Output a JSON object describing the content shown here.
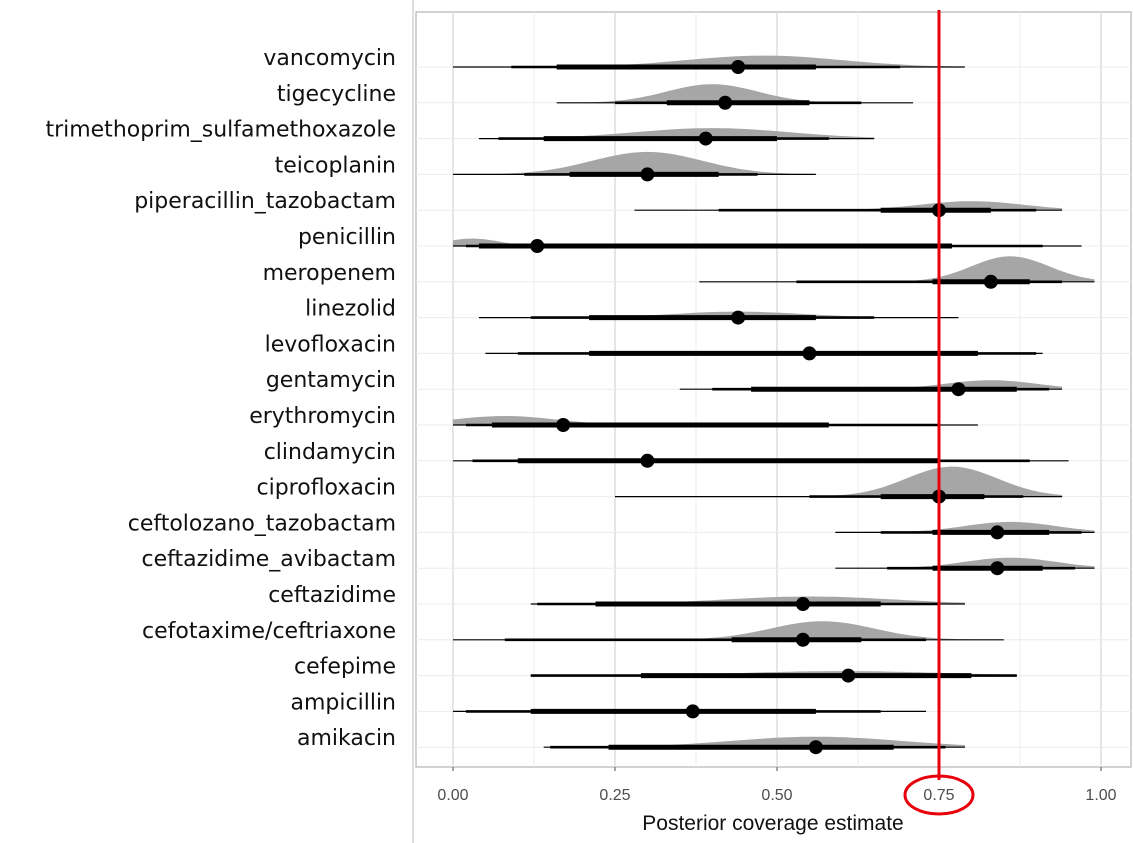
{
  "chart_data": {
    "type": "interval",
    "xlabel": "Posterior coverage estimate",
    "xlim": [
      -0.06,
      1.04
    ],
    "xticks": [
      0.0,
      0.25,
      0.5,
      0.75,
      1.0
    ],
    "xtick_labels": [
      "0.00",
      "0.25",
      "0.50",
      "0.75",
      "1.00"
    ],
    "grid": true,
    "reference_line": {
      "value": 0.75,
      "color": "#e8000b"
    },
    "highlight": {
      "tick": "0.75",
      "shape": "ellipse",
      "color": "#e8000b"
    },
    "colors": {
      "density": "#a6a6a6",
      "interval": "#000000"
    },
    "rows": [
      {
        "label": "vancomycin",
        "median": 0.44,
        "q50": [
          0.16,
          0.56
        ],
        "q80": [
          0.09,
          0.69
        ],
        "q95": [
          0.0,
          0.79
        ],
        "dmode": 0.48,
        "dspread": 0.12,
        "dheight": 0.38
      },
      {
        "label": "tigecycline",
        "median": 0.42,
        "q50": [
          0.33,
          0.55
        ],
        "q80": [
          0.25,
          0.63
        ],
        "q95": [
          0.16,
          0.71
        ],
        "dmode": 0.4,
        "dspread": 0.07,
        "dheight": 0.62
      },
      {
        "label": "trimethoprim_sulfamethoxazole",
        "median": 0.39,
        "q50": [
          0.14,
          0.5
        ],
        "q80": [
          0.07,
          0.58
        ],
        "q95": [
          0.04,
          0.65
        ],
        "dmode": 0.4,
        "dspread": 0.12,
        "dheight": 0.35
      },
      {
        "label": "teicoplanin",
        "median": 0.3,
        "q50": [
          0.18,
          0.41
        ],
        "q80": [
          0.11,
          0.47
        ],
        "q95": [
          0.0,
          0.56
        ],
        "dmode": 0.3,
        "dspread": 0.085,
        "dheight": 0.75
      },
      {
        "label": "piperacillin_tazobactam",
        "median": 0.75,
        "q50": [
          0.66,
          0.83
        ],
        "q80": [
          0.41,
          0.9
        ],
        "q95": [
          0.28,
          0.94
        ],
        "dmode": 0.8,
        "dspread": 0.08,
        "dheight": 0.3
      },
      {
        "label": "penicillin",
        "median": 0.13,
        "q50": [
          0.04,
          0.77
        ],
        "q80": [
          0.02,
          0.91
        ],
        "q95": [
          0.0,
          0.97
        ],
        "dmode": 0.03,
        "dspread": 0.04,
        "dheight": 0.25
      },
      {
        "label": "meropenem",
        "median": 0.83,
        "q50": [
          0.74,
          0.89
        ],
        "q80": [
          0.53,
          0.94
        ],
        "q95": [
          0.38,
          0.99
        ],
        "dmode": 0.86,
        "dspread": 0.06,
        "dheight": 0.85
      },
      {
        "label": "linezolid",
        "median": 0.44,
        "q50": [
          0.21,
          0.56
        ],
        "q80": [
          0.12,
          0.65
        ],
        "q95": [
          0.04,
          0.78
        ],
        "dmode": 0.44,
        "dspread": 0.1,
        "dheight": 0.2
      },
      {
        "label": "levofloxacin",
        "median": 0.55,
        "q50": [
          0.21,
          0.81
        ],
        "q80": [
          0.1,
          0.9
        ],
        "q95": [
          0.05,
          0.91
        ],
        "dmode": 0.55,
        "dspread": 0.2,
        "dheight": 0.0
      },
      {
        "label": "gentamycin",
        "median": 0.78,
        "q50": [
          0.46,
          0.87
        ],
        "q80": [
          0.4,
          0.92
        ],
        "q95": [
          0.35,
          0.94
        ],
        "dmode": 0.83,
        "dspread": 0.07,
        "dheight": 0.3
      },
      {
        "label": "erythromycin",
        "median": 0.17,
        "q50": [
          0.06,
          0.58
        ],
        "q80": [
          0.02,
          0.75
        ],
        "q95": [
          0.0,
          0.81
        ],
        "dmode": 0.08,
        "dspread": 0.08,
        "dheight": 0.3
      },
      {
        "label": "clindamycin",
        "median": 0.3,
        "q50": [
          0.1,
          0.75
        ],
        "q80": [
          0.03,
          0.89
        ],
        "q95": [
          0.0,
          0.95
        ],
        "dmode": 0.2,
        "dspread": 0.2,
        "dheight": 0.0
      },
      {
        "label": "ciprofloxacin",
        "median": 0.75,
        "q50": [
          0.66,
          0.82
        ],
        "q80": [
          0.55,
          0.88
        ],
        "q95": [
          0.25,
          0.94
        ],
        "dmode": 0.77,
        "dspread": 0.07,
        "dheight": 1.0
      },
      {
        "label": "ceftolozano_tazobactam",
        "median": 0.84,
        "q50": [
          0.74,
          0.92
        ],
        "q80": [
          0.66,
          0.97
        ],
        "q95": [
          0.59,
          0.99
        ],
        "dmode": 0.86,
        "dspread": 0.07,
        "dheight": 0.35
      },
      {
        "label": "ceftazidime_avibactam",
        "median": 0.84,
        "q50": [
          0.74,
          0.91
        ],
        "q80": [
          0.67,
          0.96
        ],
        "q95": [
          0.59,
          0.99
        ],
        "dmode": 0.86,
        "dspread": 0.07,
        "dheight": 0.35
      },
      {
        "label": "ceftazidime",
        "median": 0.54,
        "q50": [
          0.22,
          0.66
        ],
        "q80": [
          0.13,
          0.75
        ],
        "q95": [
          0.12,
          0.79
        ],
        "dmode": 0.55,
        "dspread": 0.13,
        "dheight": 0.25
      },
      {
        "label": "cefotaxime/ceftriaxone",
        "median": 0.54,
        "q50": [
          0.43,
          0.63
        ],
        "q80": [
          0.08,
          0.73
        ],
        "q95": [
          0.0,
          0.85
        ],
        "dmode": 0.57,
        "dspread": 0.08,
        "dheight": 0.62
      },
      {
        "label": "cefepime",
        "median": 0.61,
        "q50": [
          0.29,
          0.8
        ],
        "q80": [
          0.12,
          0.87
        ],
        "q95": [
          0.12,
          0.87
        ],
        "dmode": 0.6,
        "dspread": 0.15,
        "dheight": 0.15
      },
      {
        "label": "ampicillin",
        "median": 0.37,
        "q50": [
          0.12,
          0.56
        ],
        "q80": [
          0.02,
          0.66
        ],
        "q95": [
          0.0,
          0.73
        ],
        "dmode": 0.37,
        "dspread": 0.15,
        "dheight": 0.0
      },
      {
        "label": "amikacin",
        "median": 0.56,
        "q50": [
          0.24,
          0.68
        ],
        "q80": [
          0.15,
          0.76
        ],
        "q95": [
          0.14,
          0.79
        ],
        "dmode": 0.56,
        "dspread": 0.13,
        "dheight": 0.35
      }
    ]
  }
}
